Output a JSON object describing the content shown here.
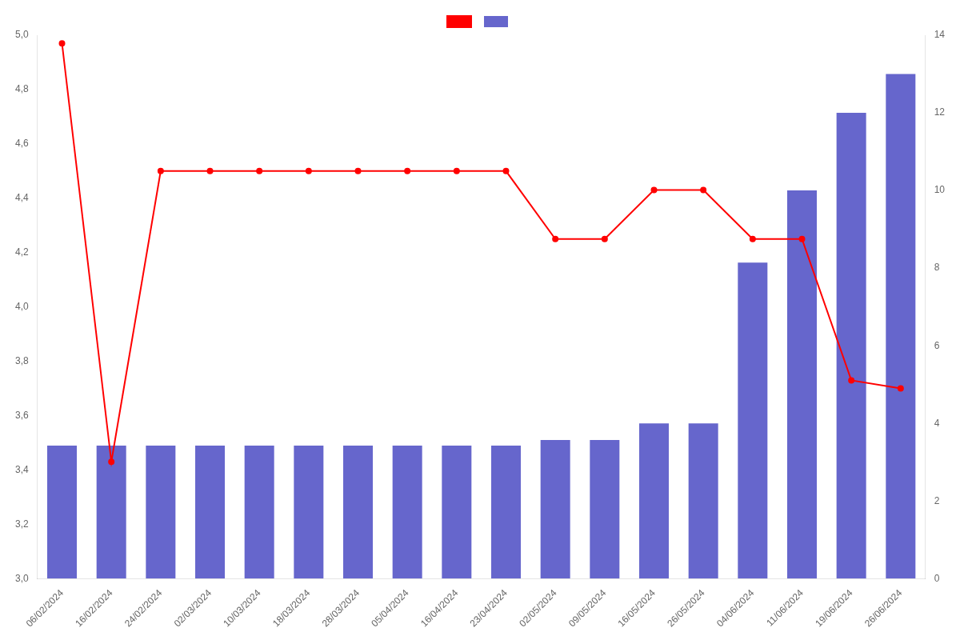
{
  "chart_data": {
    "type": "bar",
    "categories": [
      "06/02/2024",
      "16/02/2024",
      "24/02/2024",
      "02/03/2024",
      "10/03/2024",
      "18/03/2024",
      "28/03/2024",
      "05/04/2024",
      "16/04/2024",
      "23/04/2024",
      "02/05/2024",
      "09/05/2024",
      "16/05/2024",
      "26/05/2024",
      "04/06/2024",
      "11/06/2024",
      "19/06/2024",
      "26/06/2024"
    ],
    "series": [
      {
        "type": "line",
        "color": "#ff0000",
        "marker": "circle",
        "values": [
          4.97,
          3.43,
          4.5,
          4.5,
          4.5,
          4.5,
          4.5,
          4.5,
          4.5,
          4.5,
          4.25,
          4.25,
          4.43,
          4.43,
          4.25,
          4.25,
          3.73,
          3.7
        ]
      },
      {
        "type": "bar",
        "color": "#6666cc",
        "axis": "y2",
        "values": [
          3.43,
          3.43,
          3.43,
          3.43,
          3.43,
          3.43,
          3.43,
          3.43,
          3.43,
          3.43,
          3.57,
          3.57,
          4.0,
          4.0,
          8.14,
          10.0,
          12.0,
          13.0
        ]
      }
    ],
    "ylim": [
      3.0,
      5.0
    ],
    "yticks": [
      {
        "value": 3.0,
        "label": "3,0"
      },
      {
        "value": 3.2,
        "label": "3,2"
      },
      {
        "value": 3.4,
        "label": "3,4"
      },
      {
        "value": 3.6,
        "label": "3,6"
      },
      {
        "value": 3.8,
        "label": "3,8"
      },
      {
        "value": 4.0,
        "label": "4,0"
      },
      {
        "value": 4.2,
        "label": "4,2"
      },
      {
        "value": 4.4,
        "label": "4,4"
      },
      {
        "value": 4.6,
        "label": "4,6"
      },
      {
        "value": 4.8,
        "label": "4,8"
      },
      {
        "value": 5.0,
        "label": "5,0"
      }
    ],
    "y2lim": [
      0,
      14
    ],
    "y2ticks": [
      0,
      2,
      4,
      6,
      8,
      10,
      12,
      14
    ],
    "grid": false,
    "legend": "top"
  }
}
